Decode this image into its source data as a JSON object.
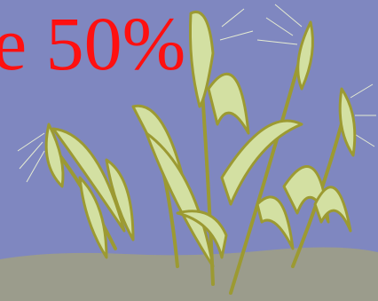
{
  "text": "e 50%"
}
